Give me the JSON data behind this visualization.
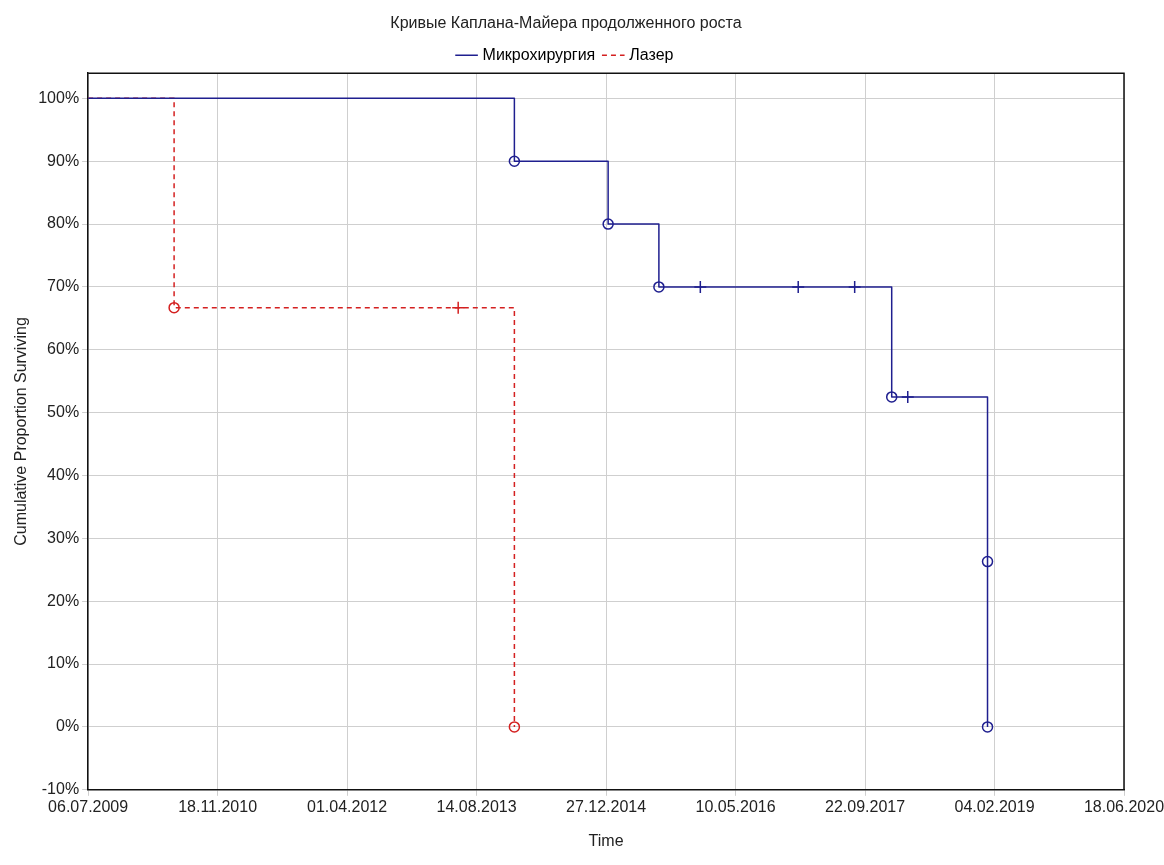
{
  "chart_data": {
    "type": "step",
    "title": "Кривые Каплана-Майера продолженного роста",
    "xlabel": "Time",
    "ylabel": "Cumulative Proportion Surviving",
    "series": [
      {
        "name": "Микрохирургия",
        "color": "#1f1f8f",
        "line_style": "solid",
        "marker": "none",
        "x": [
          "2009-07-06",
          "2014-01-07",
          "2015-01-04",
          "2015-07-19",
          "2018-01-03",
          "2019-01-08",
          "2019-01-08"
        ],
        "values": [
          100,
          90,
          80,
          70,
          52.5,
          26.3,
          0
        ]
      },
      {
        "name": "Лазер",
        "color": "#d42020",
        "line_style": "dashed",
        "marker": "none",
        "x": [
          "2009-07-06",
          "2010-06-03",
          "2014-01-07"
        ],
        "values": [
          100,
          66.7,
          0
        ]
      },
      {
        "type": "scatter",
        "color": "#1f1f8f",
        "marker": "circle",
        "x": [
          "2014-01-07",
          "2015-01-04",
          "2015-07-19",
          "2018-01-03",
          "2019-01-08",
          "2019-01-08"
        ],
        "values": [
          90,
          80,
          70,
          52.5,
          26.3,
          0
        ]
      },
      {
        "type": "scatter",
        "color": "#1f1f8f",
        "marker": "cross",
        "x": [
          "2015-12-26",
          "2017-01-07",
          "2017-08-13",
          "2018-03-06"
        ],
        "values": [
          70,
          70,
          70,
          52.5
        ]
      },
      {
        "type": "scatter",
        "color": "#d42020",
        "marker": "circle",
        "x": [
          "2010-06-03",
          "2014-01-07"
        ],
        "values": [
          66.7,
          0
        ]
      },
      {
        "type": "scatter",
        "color": "#d42020",
        "marker": "cross",
        "x": [
          "2013-06-04"
        ],
        "values": [
          66.7
        ]
      }
    ],
    "xlim": [
      "2009-07-06",
      "2020-06-18"
    ],
    "xticks": [
      {
        "value": "2009-07-06",
        "label": "06.07.2009"
      },
      {
        "value": "2010-11-18",
        "label": "18.11.2010"
      },
      {
        "value": "2012-04-01",
        "label": "01.04.2012"
      },
      {
        "value": "2013-08-14",
        "label": "14.08.2013"
      },
      {
        "value": "2014-12-27",
        "label": "27.12.2014"
      },
      {
        "value": "2016-05-10",
        "label": "10.05.2016"
      },
      {
        "value": "2017-09-22",
        "label": "22.09.2017"
      },
      {
        "value": "2019-02-04",
        "label": "04.02.2019"
      },
      {
        "value": "2020-06-18",
        "label": "18.06.2020"
      }
    ],
    "ylim": [
      -10,
      104
    ],
    "yticks": [
      {
        "value": -10,
        "label": "-10%"
      },
      {
        "value": 0,
        "label": "0%"
      },
      {
        "value": 10,
        "label": "10%"
      },
      {
        "value": 20,
        "label": "20%"
      },
      {
        "value": 30,
        "label": "30%"
      },
      {
        "value": 40,
        "label": "40%"
      },
      {
        "value": 50,
        "label": "50%"
      },
      {
        "value": 60,
        "label": "60%"
      },
      {
        "value": 70,
        "label": "70%"
      },
      {
        "value": 80,
        "label": "80%"
      },
      {
        "value": 90,
        "label": "90%"
      },
      {
        "value": 100,
        "label": "100%"
      }
    ],
    "grid": true,
    "legend": "top"
  }
}
